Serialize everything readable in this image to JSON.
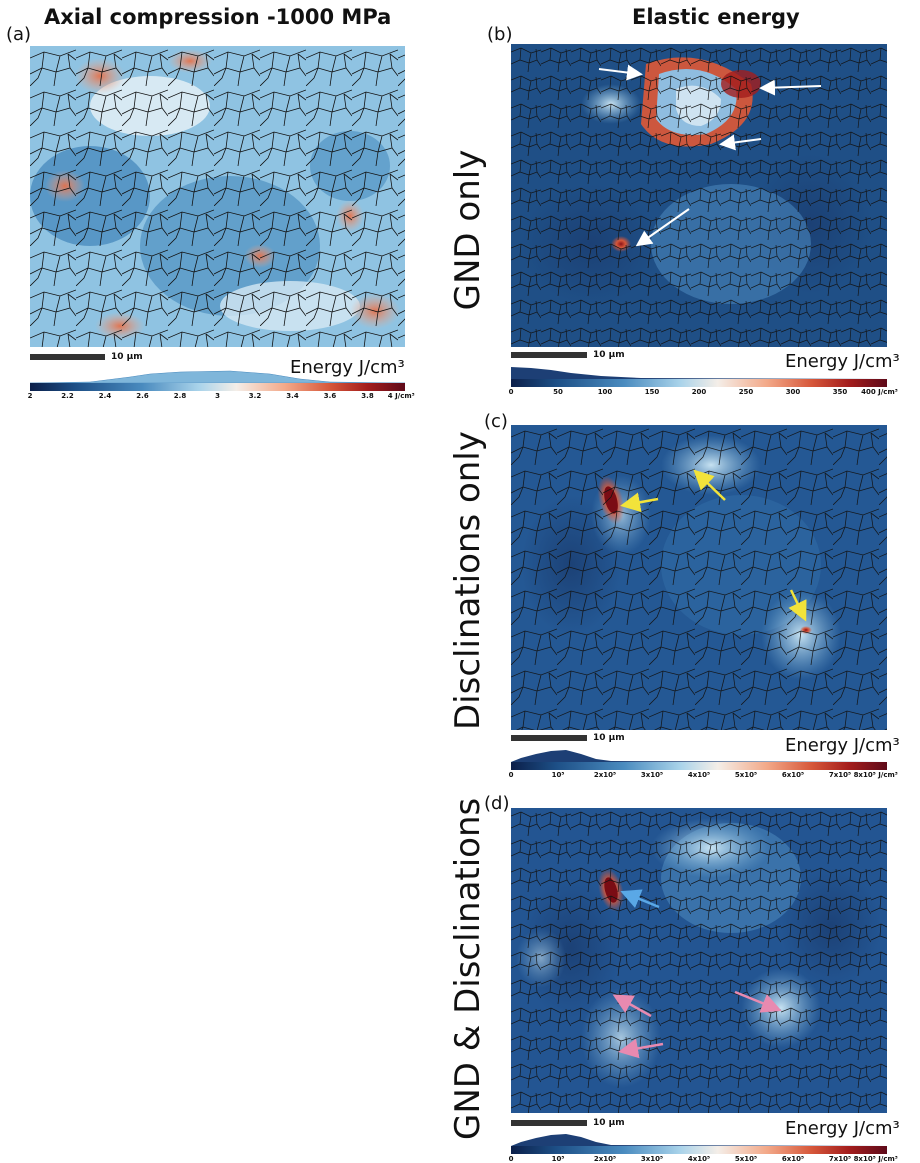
{
  "panel_a": {
    "title": "Axial compression -1000 MPa",
    "label": "(a)",
    "scale_label": "10 μm",
    "energy_label": "Energy J/cm³",
    "colorbar_ticks": [
      "2",
      "2.2",
      "2.4",
      "2.6",
      "2.8",
      "3",
      "3.2",
      "3.4",
      "3.6",
      "3.8",
      "4 J/cm³"
    ]
  },
  "header_right": {
    "title": "Elastic energy"
  },
  "panel_b": {
    "label": "(b)",
    "row_label": "GND only",
    "scale_label": "10 μm",
    "energy_label": "Energy J/cm³",
    "colorbar_ticks": [
      "0",
      "50",
      "100",
      "150",
      "200",
      "250",
      "300",
      "350",
      "400 J/cm³"
    ]
  },
  "panel_c": {
    "label": "(c)",
    "row_label": "Disclinations only",
    "scale_label": "10 μm",
    "energy_label": "Energy J/cm³",
    "colorbar_ticks": [
      "0",
      "10⁵",
      "2x10⁵",
      "3x10⁵",
      "4x10⁵",
      "5x10⁵",
      "6x10⁵",
      "7x10⁵",
      "8x10⁵ J/cm³"
    ]
  },
  "panel_d": {
    "label": "(d)",
    "row_label": "GND & Disclinations",
    "scale_label": "10 μm",
    "energy_label": "Energy J/cm³",
    "colorbar_ticks": [
      "0",
      "10⁵",
      "2x10⁵",
      "3x10⁵",
      "4x10⁵",
      "5x10⁵",
      "6x10⁵",
      "7x10⁵",
      "8x10⁵ J/cm³"
    ]
  },
  "colors": {
    "colormap": [
      "#0b1f4a",
      "#1d4f86",
      "#4a8bbf",
      "#a9d3ea",
      "#f4eee8",
      "#f3a989",
      "#d6573a",
      "#a31d1d",
      "#5e0a1a"
    ],
    "arrow_white": "#ffffff",
    "arrow_yellow": "#f2e33a",
    "arrow_blue": "#5aa8e6",
    "arrow_pink": "#e88ab0"
  }
}
